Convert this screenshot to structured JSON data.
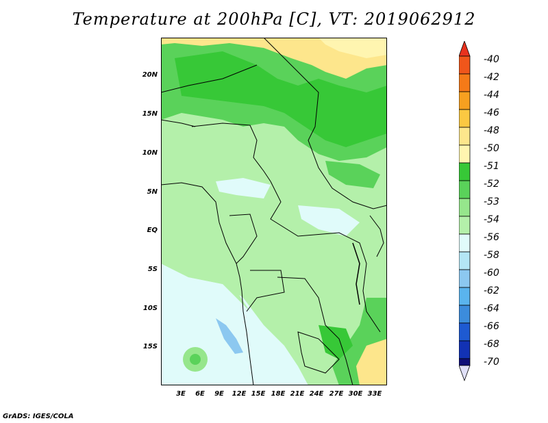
{
  "title": "Temperature at 200hPa [C], VT: 2019062912",
  "credit": "GrADS: IGES/COLA",
  "lat_labels": [
    "20N",
    "15N",
    "10N",
    "5N",
    "EQ",
    "5S",
    "10S",
    "15S"
  ],
  "lon_labels": [
    "3E",
    "6E",
    "9E",
    "12E",
    "15E",
    "18E",
    "21E",
    "24E",
    "27E",
    "30E",
    "33E"
  ],
  "legend": {
    "levels": [
      "-40",
      "-42",
      "-44",
      "-46",
      "-48",
      "-50",
      "-51",
      "-52",
      "-53",
      "-54",
      "-56",
      "-58",
      "-60",
      "-62",
      "-64",
      "-66",
      "-68",
      "-70"
    ],
    "colors": [
      "#e8321e",
      "#f0561b",
      "#f57a18",
      "#f7a020",
      "#fbc842",
      "#fde68c",
      "#fff5b0",
      "#37c837",
      "#5ad25a",
      "#96e68c",
      "#b4f0aa",
      "#e0fbfa",
      "#b4e6f5",
      "#8cc8f0",
      "#5ab4ee",
      "#3c8cdc",
      "#1e5ad2",
      "#1232b4",
      "#0f0f78",
      "#e0e0f8"
    ]
  }
}
